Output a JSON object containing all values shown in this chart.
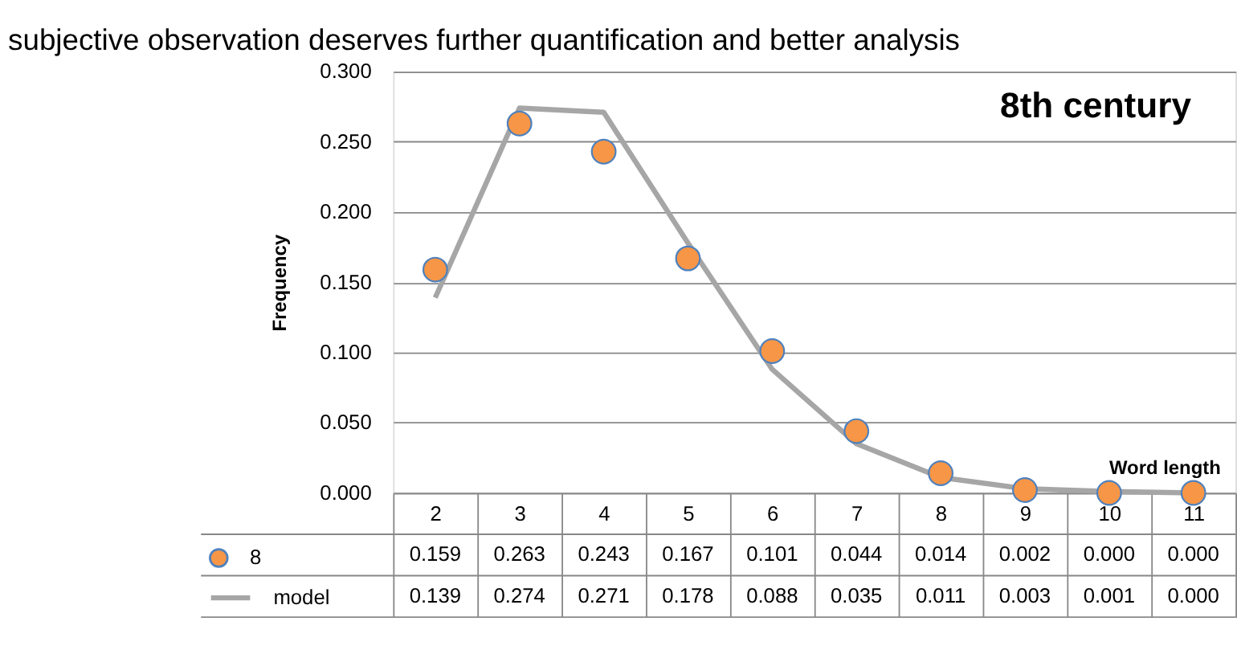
{
  "chart_data": {
    "type": "line",
    "title": "8th century",
    "xlabel": "Word length",
    "ylabel": "Frequency",
    "annotations": [
      "subjective observation deserves further quantification and better analysis"
    ],
    "categories": [
      "2",
      "3",
      "4",
      "5",
      "6",
      "7",
      "8",
      "9",
      "10",
      "11"
    ],
    "ylim": [
      0,
      0.3
    ],
    "yticks": [
      {
        "value": 0,
        "label": "0.000"
      },
      {
        "value": 0.05,
        "label": "0.050"
      },
      {
        "value": 0.1,
        "label": "0.100"
      },
      {
        "value": 0.15,
        "label": "0.150"
      },
      {
        "value": 0.2,
        "label": "0.200"
      },
      {
        "value": 0.25,
        "label": "0.250"
      },
      {
        "value": 0.3,
        "label": "0.300"
      }
    ],
    "grid": "y",
    "legend": "bottom left",
    "series": [
      {
        "name": "8",
        "type": "scatter",
        "marker": "circle",
        "color": "#f79646",
        "values": [
          0.159,
          0.263,
          0.243,
          0.167,
          0.101,
          0.044,
          0.014,
          0.002,
          0.0,
          0.0
        ],
        "value_labels": [
          "0.159",
          "0.263",
          "0.243",
          "0.167",
          "0.101",
          "0.044",
          "0.014",
          "0.002",
          "0.000",
          "0.000"
        ]
      },
      {
        "name": "model",
        "line_style": "solid",
        "color": "#a6a6a6",
        "values": [
          0.139,
          0.274,
          0.271,
          0.178,
          0.088,
          0.035,
          0.011,
          0.003,
          0.001,
          0.0
        ],
        "value_labels": [
          "0.139",
          "0.274",
          "0.271",
          "0.178",
          "0.088",
          "0.035",
          "0.011",
          "0.003",
          "0.001",
          "0.000"
        ]
      }
    ]
  }
}
